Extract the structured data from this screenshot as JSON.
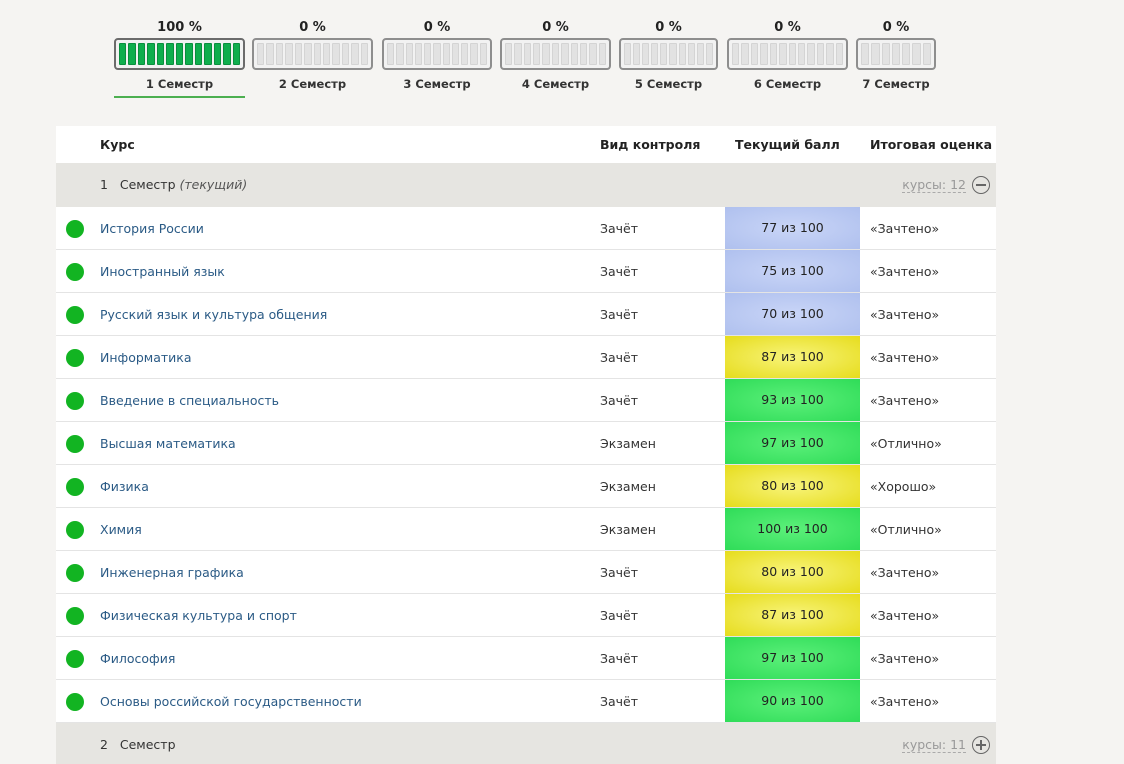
{
  "semesters": [
    {
      "percent": "100 %",
      "label": "1 Семестр",
      "progress": 1.0,
      "active": true
    },
    {
      "percent": "0 %",
      "label": "2 Семестр",
      "progress": 0,
      "active": false
    },
    {
      "percent": "0 %",
      "label": "3 Семестр",
      "progress": 0,
      "active": false
    },
    {
      "percent": "0 %",
      "label": "4 Семестр",
      "progress": 0,
      "active": false
    },
    {
      "percent": "0 %",
      "label": "5 Семестр",
      "progress": 0,
      "active": false
    },
    {
      "percent": "0 %",
      "label": "6 Семестр",
      "progress": 0,
      "active": false
    },
    {
      "percent": "0 %",
      "label": "7 Семестр",
      "progress": 0,
      "active": false
    }
  ],
  "table": {
    "headers": {
      "course": "Курс",
      "control": "Вид контроля",
      "score": "Текущий балл",
      "final": "Итоговая оценка"
    },
    "groups": [
      {
        "number": "1",
        "title": "Семестр",
        "note": "(текущий)",
        "count_label": "курсы: 12",
        "expanded": true,
        "toggle_icon": "minus-circle-icon"
      },
      {
        "number": "2",
        "title": "Семестр",
        "note": "",
        "count_label": "курсы: 11",
        "expanded": false,
        "toggle_icon": "plus-circle-icon"
      }
    ],
    "rows": [
      {
        "course": "История России",
        "control": "Зачёт",
        "score": "77 из 100",
        "final": "«Зачтено»",
        "level": "blue"
      },
      {
        "course": "Иностранный язык",
        "control": "Зачёт",
        "score": "75 из 100",
        "final": "«Зачтено»",
        "level": "blue"
      },
      {
        "course": "Русский язык и культура общения",
        "control": "Зачёт",
        "score": "70 из 100",
        "final": "«Зачтено»",
        "level": "blue"
      },
      {
        "course": "Информатика",
        "control": "Зачёт",
        "score": "87 из 100",
        "final": "«Зачтено»",
        "level": "yellow"
      },
      {
        "course": "Введение в специальность",
        "control": "Зачёт",
        "score": "93 из 100",
        "final": "«Зачтено»",
        "level": "green"
      },
      {
        "course": "Высшая математика",
        "control": "Экзамен",
        "score": "97 из 100",
        "final": "«Отлично»",
        "level": "green"
      },
      {
        "course": "Физика",
        "control": "Экзамен",
        "score": "80 из 100",
        "final": "«Хорошо»",
        "level": "yellow"
      },
      {
        "course": "Химия",
        "control": "Экзамен",
        "score": "100 из 100",
        "final": "«Отлично»",
        "level": "green"
      },
      {
        "course": "Инженерная графика",
        "control": "Зачёт",
        "score": "80 из 100",
        "final": "«Зачтено»",
        "level": "yellow"
      },
      {
        "course": "Физическая культура и спорт",
        "control": "Зачёт",
        "score": "87 из 100",
        "final": "«Зачтено»",
        "level": "yellow"
      },
      {
        "course": "Философия",
        "control": "Зачёт",
        "score": "97 из 100",
        "final": "«Зачтено»",
        "level": "green"
      },
      {
        "course": "Основы российской государственности",
        "control": "Зачёт",
        "score": "90 из 100",
        "final": "«Зачтено»",
        "level": "green"
      }
    ]
  },
  "colors": {
    "status_dot": "#12b422",
    "progress_fill": "#0fae4d",
    "level_blue": "#b9c8f2",
    "level_yellow": "#eee53a",
    "level_green": "#3fe565",
    "link": "#2a5a85"
  }
}
